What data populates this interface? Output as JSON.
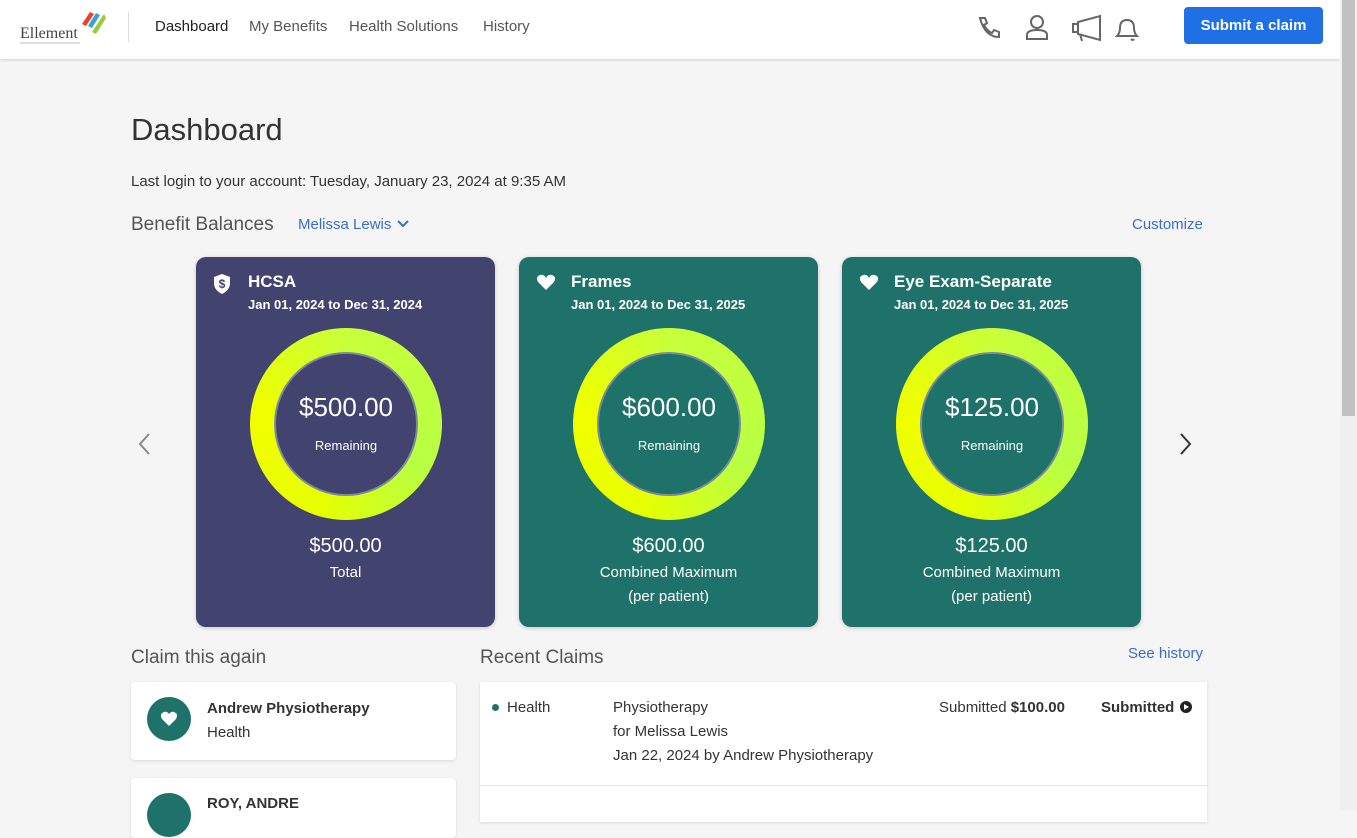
{
  "header": {
    "logo": "Ellement",
    "nav": [
      "Dashboard",
      "My Benefits",
      "Health Solutions",
      "History"
    ],
    "action": "Submit a claim"
  },
  "page": {
    "title": "Dashboard",
    "last_login": "Last login to your account: Tuesday, January 23, 2024 at 9:35 AM"
  },
  "balances": {
    "title": "Benefit Balances",
    "member": "Melissa Lewis",
    "customize": "Customize",
    "cards": [
      {
        "name": "HCSA",
        "period": "Jan 01, 2024 to Dec 31, 2024",
        "remaining": "$500.00",
        "remaining_label": "Remaining",
        "amount": "$500.00",
        "amount_label": [
          "Total"
        ]
      },
      {
        "name": "Frames",
        "period": "Jan 01, 2024 to Dec 31, 2025",
        "remaining": "$600.00",
        "remaining_label": "Remaining",
        "amount": "$600.00",
        "amount_label": [
          "Combined Maximum",
          "(per patient)"
        ]
      },
      {
        "name": "Eye Exam-Separate",
        "period": "Jan 01, 2024 to Dec 31, 2025",
        "remaining": "$125.00",
        "remaining_label": "Remaining",
        "amount": "$125.00",
        "amount_label": [
          "Combined Maximum",
          "(per patient)"
        ]
      }
    ]
  },
  "claim_again": {
    "title": "Claim this again",
    "items": [
      {
        "name": "Andrew Physiotherapy",
        "category": "Health"
      },
      {
        "name": "ROY, ANDRE"
      }
    ]
  },
  "recent": {
    "title": "Recent Claims",
    "link": "See history",
    "claims": [
      {
        "category": "Health",
        "service": "Physiotherapy",
        "patient": "for Melissa Lewis",
        "detail": "Jan 22, 2024 by Andrew Physiotherapy",
        "amount_label": "Submitted",
        "amount": "$100.00",
        "status": "Submitted"
      }
    ]
  }
}
